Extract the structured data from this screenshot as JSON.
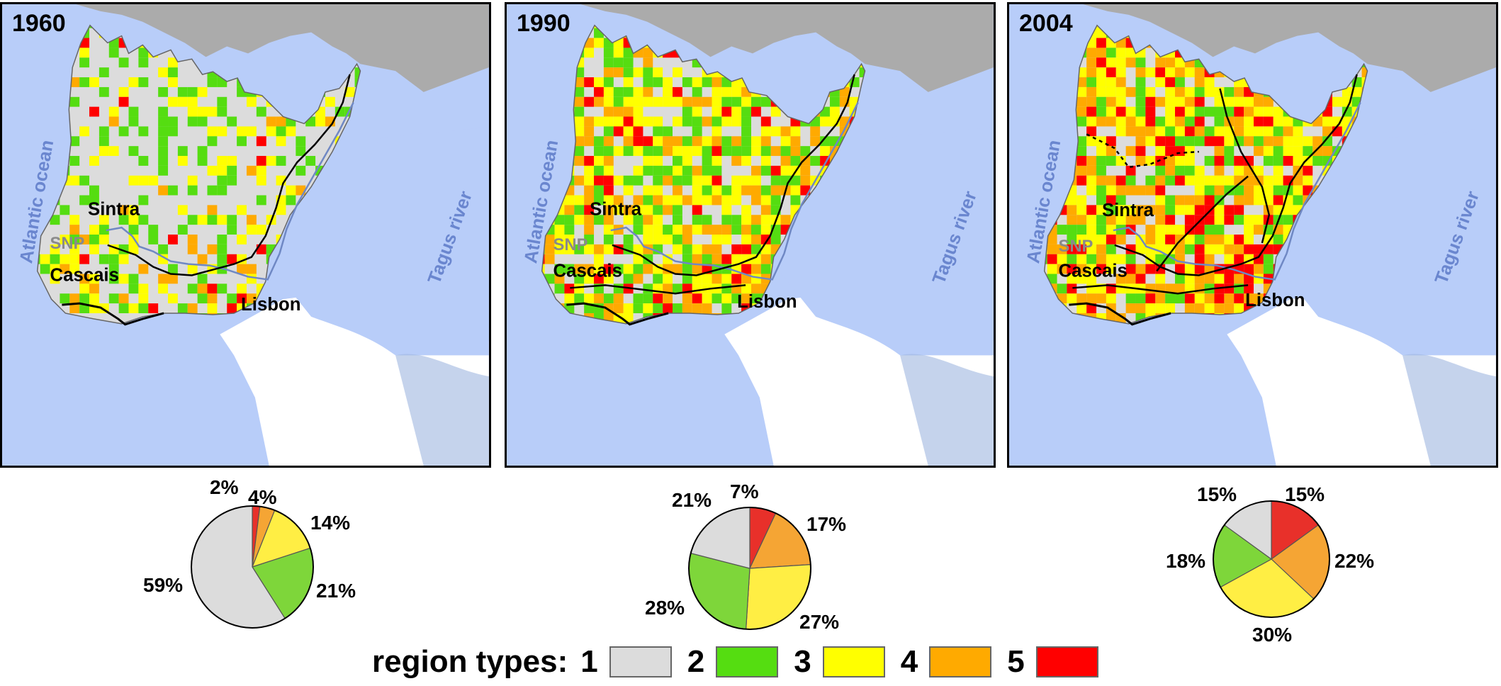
{
  "colors": {
    "ocean": "#b8cdf9",
    "land_out": "#ffffff",
    "spain_gray": "#ababab",
    "water_label": "#6a86cf",
    "river": "#6f88c4",
    "rail": "#000000",
    "type1": "#dcdcdc",
    "type2": "#55dd11",
    "type3": "#ffff00",
    "type4": "#ffaa00",
    "type5": "#ff0000",
    "pie_type1": "#dcdcdc",
    "pie_type2": "#7ed63a",
    "pie_type3": "#ffee44",
    "pie_type4": "#f5a534",
    "pie_type5": "#e8302a"
  },
  "map_labels": {
    "ocean": "Atlantic ocean",
    "river": "Tagus river",
    "sintra": "Sintra",
    "snp": "SNP",
    "cascais": "Cascais",
    "lisbon": "Lisbon"
  },
  "panels": [
    {
      "year": "1960",
      "weights": [
        59,
        21,
        14,
        4,
        2
      ]
    },
    {
      "year": "1990",
      "weights": [
        21,
        28,
        27,
        17,
        7
      ]
    },
    {
      "year": "2004",
      "weights": [
        15,
        18,
        30,
        22,
        15
      ]
    }
  ],
  "chart_data": [
    {
      "type": "pie",
      "title": "1960",
      "categories": [
        "1",
        "2",
        "3",
        "4",
        "5"
      ],
      "values": [
        59,
        21,
        14,
        4,
        2
      ],
      "labels": [
        "59%",
        "21%",
        "14%",
        "4%",
        "2%"
      ]
    },
    {
      "type": "pie",
      "title": "1990",
      "categories": [
        "1",
        "2",
        "3",
        "4",
        "5"
      ],
      "values": [
        21,
        28,
        27,
        17,
        7
      ],
      "labels": [
        "21%",
        "28%",
        "27%",
        "17%",
        "7%"
      ]
    },
    {
      "type": "pie",
      "title": "2004",
      "categories": [
        "1",
        "2",
        "3",
        "4",
        "5"
      ],
      "values": [
        15,
        18,
        30,
        22,
        15
      ],
      "labels": [
        "15%",
        "18%",
        "30%",
        "22%",
        "15%"
      ]
    }
  ],
  "legend": {
    "title": "region types:",
    "items": [
      {
        "label": "1",
        "color": "#dcdcdc"
      },
      {
        "label": "2",
        "color": "#55dd11"
      },
      {
        "label": "3",
        "color": "#ffff00"
      },
      {
        "label": "4",
        "color": "#ffaa00"
      },
      {
        "label": "5",
        "color": "#ff0000"
      }
    ]
  }
}
